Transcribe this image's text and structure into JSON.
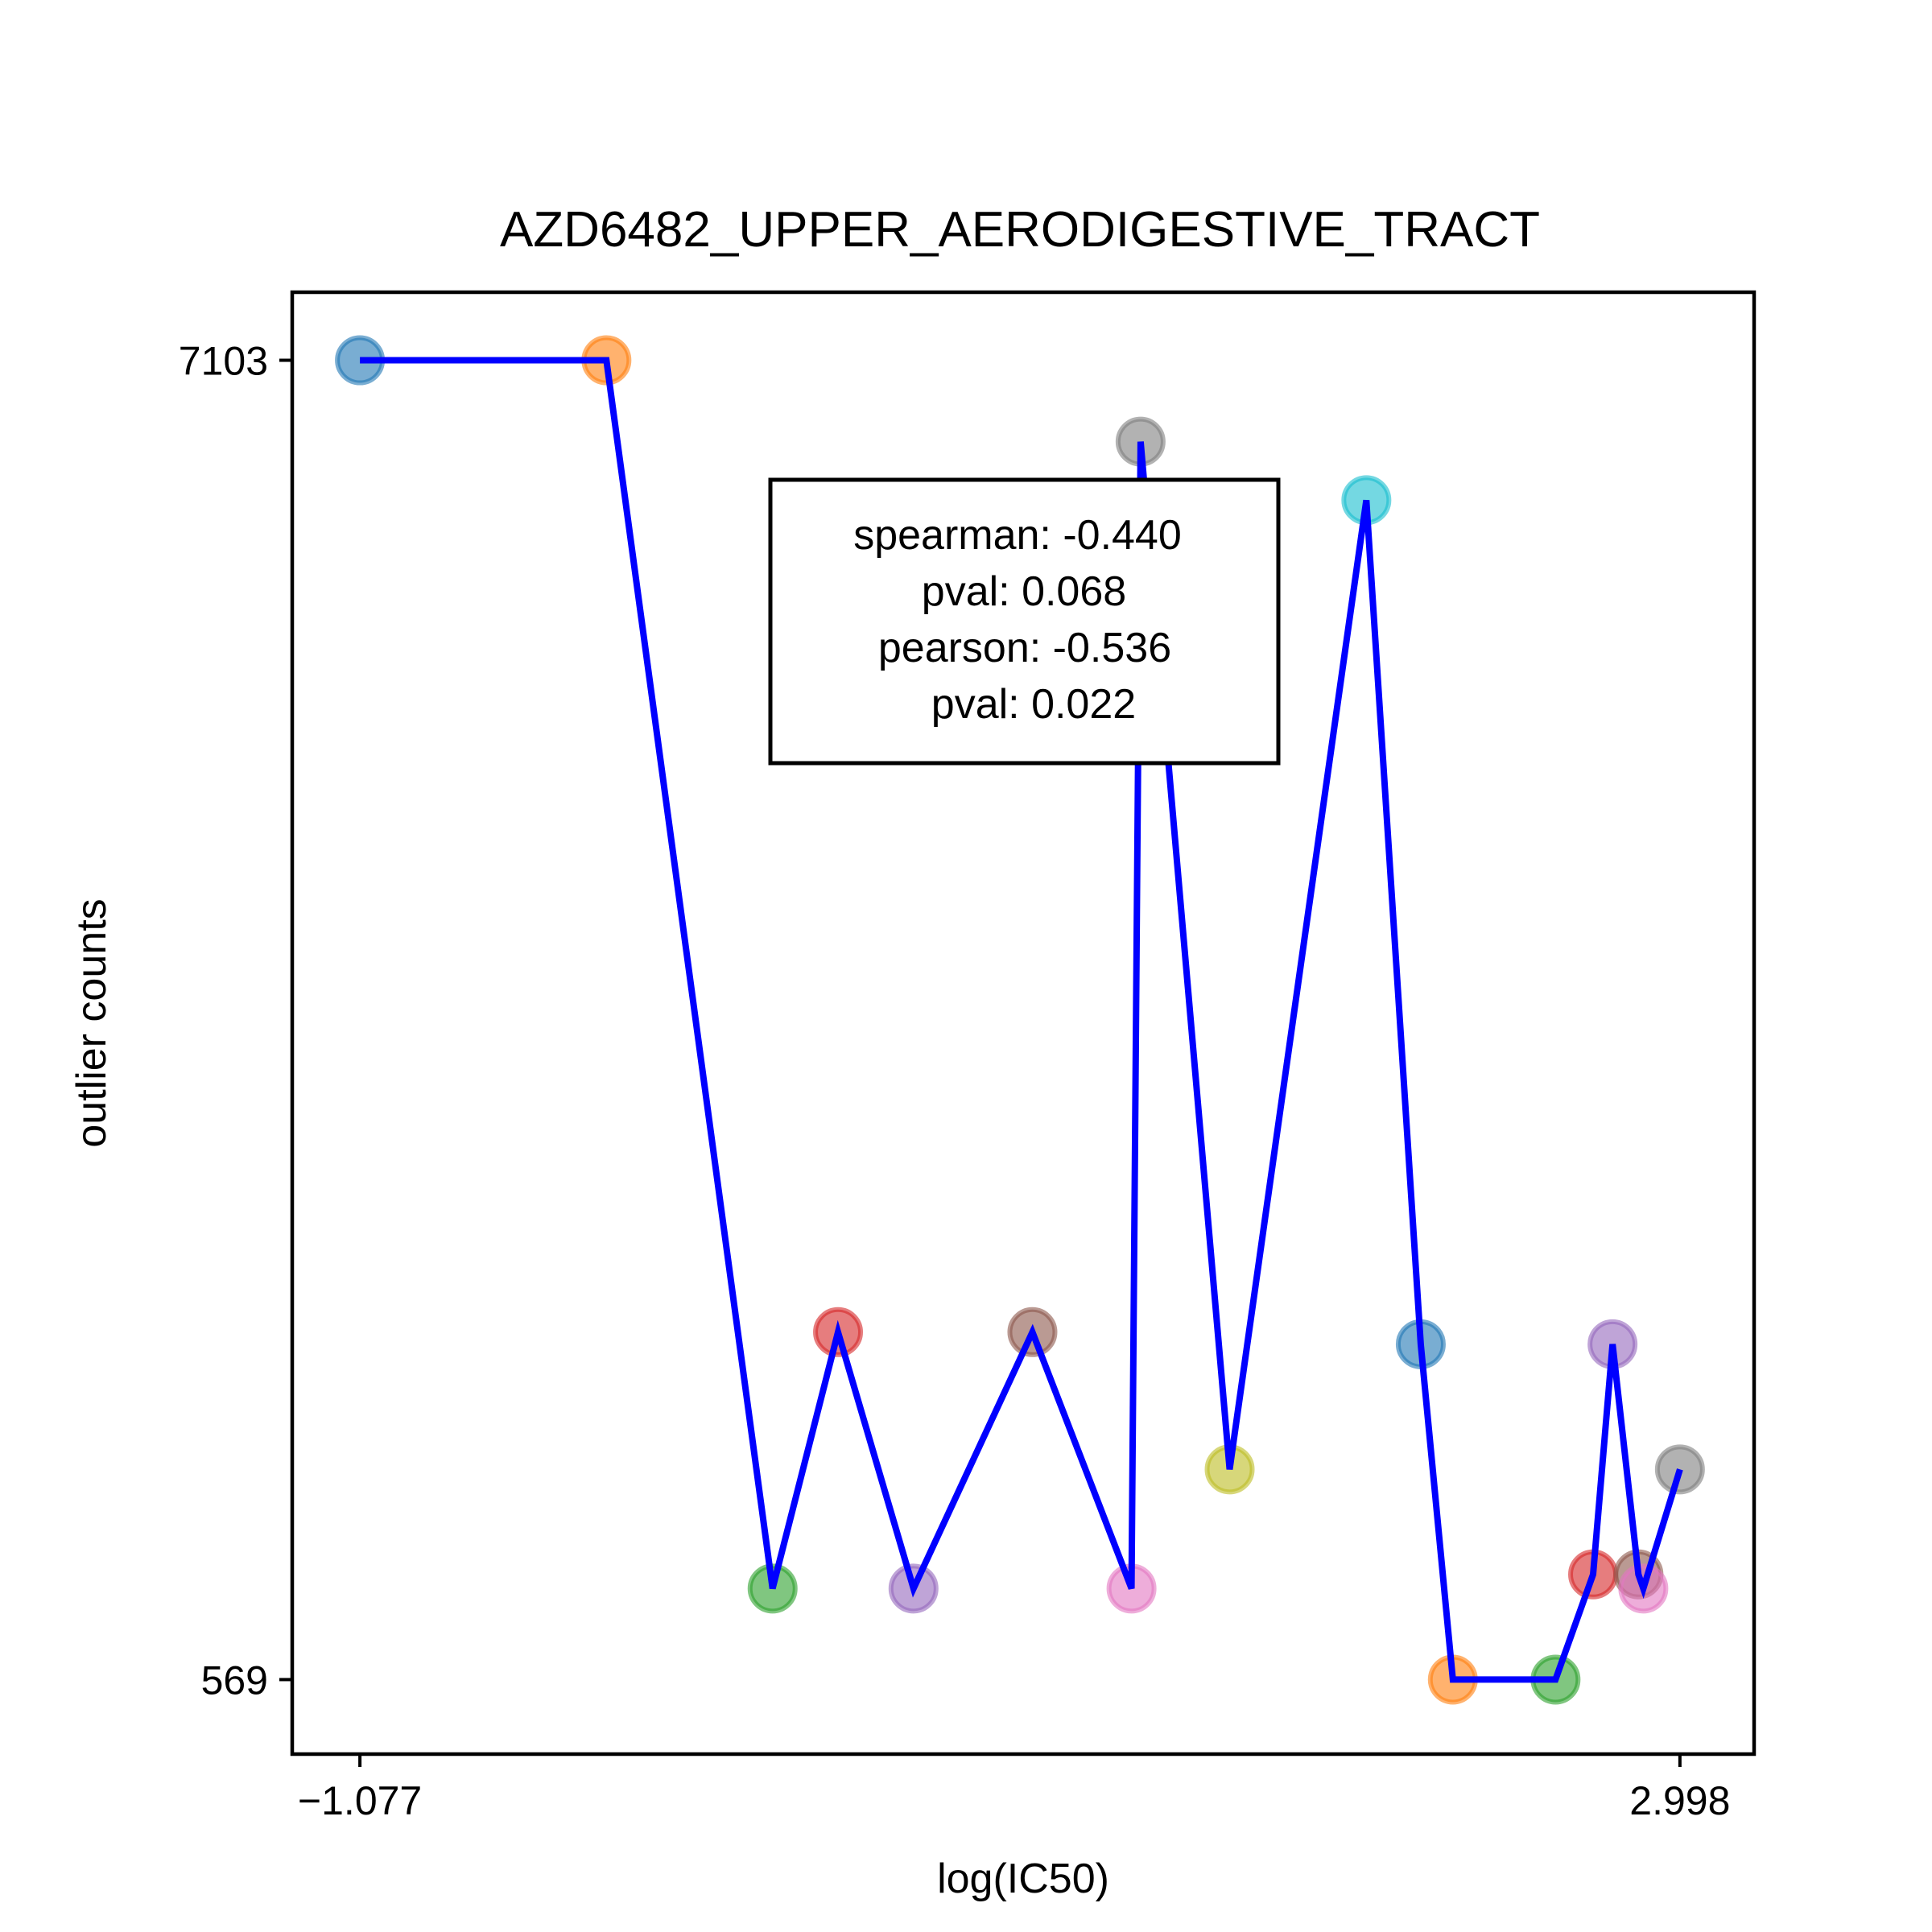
{
  "chart_data": {
    "type": "scatter",
    "title": "AZD6482_UPPER_AERODIGESTIVE_TRACT",
    "xlabel": "log(IC50)",
    "ylabel": "outlier counts",
    "x_ticks": [
      -1.077,
      2.998
    ],
    "x_tick_labels": [
      "−1.077",
      "2.998"
    ],
    "y_ticks": [
      569,
      7103
    ],
    "y_tick_labels": [
      "569",
      "7103"
    ],
    "xlim": [
      -1.286,
      3.227
    ],
    "ylim": [
      200,
      7440
    ],
    "grid": false,
    "line_color": "#0000ff",
    "points": [
      {
        "x": -1.077,
        "y": 7103,
        "color": "#1f77b4"
      },
      {
        "x": -0.316,
        "y": 7103,
        "color": "#ff7f0e"
      },
      {
        "x": 0.197,
        "y": 1020,
        "color": "#2ca02c"
      },
      {
        "x": 0.399,
        "y": 2290,
        "color": "#d62728"
      },
      {
        "x": 0.632,
        "y": 1020,
        "color": "#9467bd"
      },
      {
        "x": 0.999,
        "y": 2290,
        "color": "#8c564b"
      },
      {
        "x": 1.305,
        "y": 1020,
        "color": "#e377c2"
      },
      {
        "x": 1.333,
        "y": 6700,
        "color": "#7f7f7f"
      },
      {
        "x": 1.608,
        "y": 1610,
        "color": "#bcbd22"
      },
      {
        "x": 2.03,
        "y": 6410,
        "color": "#17becf"
      },
      {
        "x": 2.198,
        "y": 2230,
        "color": "#1f77b4"
      },
      {
        "x": 2.297,
        "y": 569,
        "color": "#ff7f0e"
      },
      {
        "x": 2.614,
        "y": 569,
        "color": "#2ca02c"
      },
      {
        "x": 2.73,
        "y": 1090,
        "color": "#d62728"
      },
      {
        "x": 2.79,
        "y": 2230,
        "color": "#9467bd"
      },
      {
        "x": 2.87,
        "y": 1090,
        "color": "#8c564b"
      },
      {
        "x": 2.885,
        "y": 1020,
        "color": "#e377c2"
      },
      {
        "x": 2.998,
        "y": 1610,
        "color": "#7f7f7f"
      }
    ],
    "annotation": {
      "lines": [
        "spearman: -0.440",
        "pval: 0.068",
        "pearson: -0.536",
        "pval: 0.022"
      ],
      "placement": "upper-center"
    }
  }
}
